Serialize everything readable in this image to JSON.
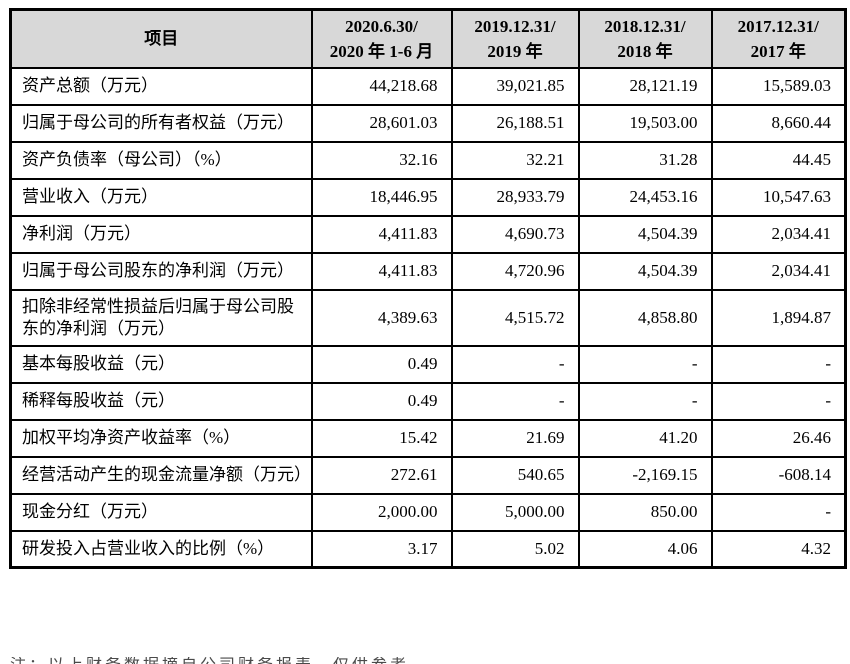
{
  "colors": {
    "header_bg": "#d8d8d8",
    "border": "#000000",
    "page_bg": "#ffffff",
    "text": "#000000"
  },
  "table": {
    "header": {
      "item_label": "项目",
      "period_columns": [
        "2020.6.30/\n2020 年 1-6 月",
        "2019.12.31/\n2019 年",
        "2018.12.31/\n2018 年",
        "2017.12.31/\n2017 年"
      ]
    },
    "rows": [
      {
        "label": "资产总额（万元）",
        "values": [
          "44,218.68",
          "39,021.85",
          "28,121.19",
          "15,589.03"
        ]
      },
      {
        "label": "归属于母公司的所有者权益（万元）",
        "values": [
          "28,601.03",
          "26,188.51",
          "19,503.00",
          "8,660.44"
        ]
      },
      {
        "label": "资产负债率（母公司）（%）",
        "values": [
          "32.16",
          "32.21",
          "31.28",
          "44.45"
        ]
      },
      {
        "label": "营业收入（万元）",
        "values": [
          "18,446.95",
          "28,933.79",
          "24,453.16",
          "10,547.63"
        ]
      },
      {
        "label": "净利润（万元）",
        "values": [
          "4,411.83",
          "4,690.73",
          "4,504.39",
          "2,034.41"
        ]
      },
      {
        "label": "归属于母公司股东的净利润（万元）",
        "values": [
          "4,411.83",
          "4,720.96",
          "4,504.39",
          "2,034.41"
        ]
      },
      {
        "label": "扣除非经常性损益后归属于母公司股东的净利润（万元）",
        "values": [
          "4,389.63",
          "4,515.72",
          "4,858.80",
          "1,894.87"
        ]
      },
      {
        "label": "基本每股收益（元）",
        "values": [
          "0.49",
          "-",
          "-",
          "-"
        ]
      },
      {
        "label": "稀释每股收益（元）",
        "values": [
          "0.49",
          "-",
          "-",
          "-"
        ]
      },
      {
        "label": "加权平均净资产收益率（%）",
        "values": [
          "15.42",
          "21.69",
          "41.20",
          "26.46"
        ]
      },
      {
        "label": "经营活动产生的现金流量净额（万元）",
        "values": [
          "272.61",
          "540.65",
          "-2,169.15",
          "-608.14"
        ]
      },
      {
        "label": "现金分红（万元）",
        "values": [
          "2,000.00",
          "5,000.00",
          "850.00",
          "-"
        ]
      },
      {
        "label": "研发投入占营业收入的比例（%）",
        "values": [
          "3.17",
          "5.02",
          "4.06",
          "4.32"
        ]
      }
    ]
  },
  "footnote_clipped": "注：以上财务数据摘自公司财务报表，仅供参考。"
}
